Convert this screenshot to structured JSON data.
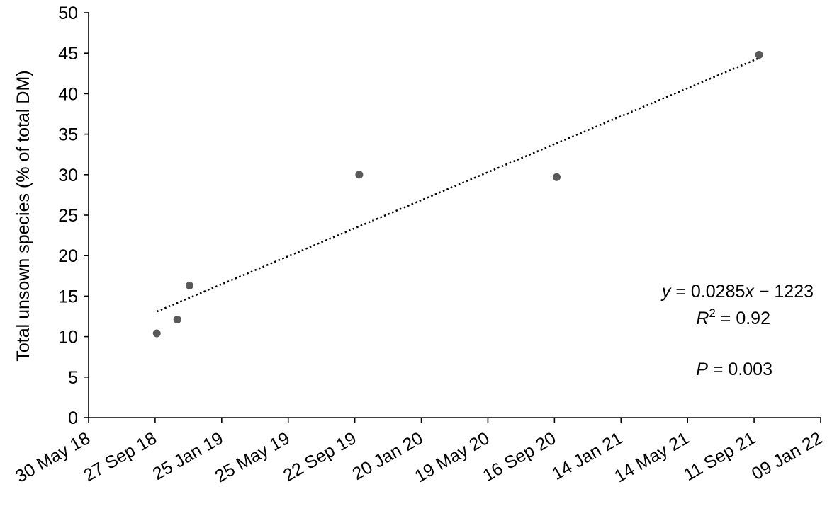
{
  "chart_data": {
    "type": "scatter",
    "ylabel": "Total unsown species (% of total DM)",
    "xlabel": "",
    "ylim": [
      0,
      50
    ],
    "y_ticks": [
      0,
      5,
      10,
      15,
      20,
      25,
      30,
      35,
      40,
      45,
      50
    ],
    "xlim": [
      "2018-05-30",
      "2022-01-09"
    ],
    "x_ticks": [
      {
        "date": "2018-05-30",
        "label": "30 May 18"
      },
      {
        "date": "2018-09-27",
        "label": "27 Sep 18"
      },
      {
        "date": "2019-01-25",
        "label": "25 Jan 19"
      },
      {
        "date": "2019-05-25",
        "label": "25 May 19"
      },
      {
        "date": "2019-09-22",
        "label": "22 Sep 19"
      },
      {
        "date": "2020-01-20",
        "label": "20 Jan 20"
      },
      {
        "date": "2020-05-19",
        "label": "19 May 20"
      },
      {
        "date": "2020-09-16",
        "label": "16 Sep 20"
      },
      {
        "date": "2021-01-14",
        "label": "14 Jan 21"
      },
      {
        "date": "2021-05-14",
        "label": "14 May 21"
      },
      {
        "date": "2021-09-11",
        "label": "11 Sep 21"
      },
      {
        "date": "2022-01-09",
        "label": "09 Jan 22"
      }
    ],
    "points": [
      {
        "x": "2018-09-30",
        "y": 10.4
      },
      {
        "x": "2018-11-06",
        "y": 12.1
      },
      {
        "x": "2018-11-28",
        "y": 16.3
      },
      {
        "x": "2019-09-30",
        "y": 30.0
      },
      {
        "x": "2020-09-20",
        "y": 29.7
      },
      {
        "x": "2021-09-20",
        "y": 44.8
      }
    ],
    "trendline": {
      "style": "dotted",
      "from": {
        "x": "2018-09-30",
        "y": 13.1
      },
      "to": {
        "x": "2021-09-20",
        "y": 44.4
      }
    },
    "annotation": {
      "equation": {
        "y_var": "y",
        "eq1": " = 0.0285",
        "x_var": "x",
        "eq2": " − 1223"
      },
      "r2": {
        "r": "R",
        "sup": "2",
        "rest": " = 0.92"
      },
      "p": {
        "p": "P",
        "rest": " = 0.003"
      }
    },
    "grid": false,
    "colors": {
      "points": "#595959",
      "axis": "#000000",
      "trendline": "#000000"
    }
  }
}
